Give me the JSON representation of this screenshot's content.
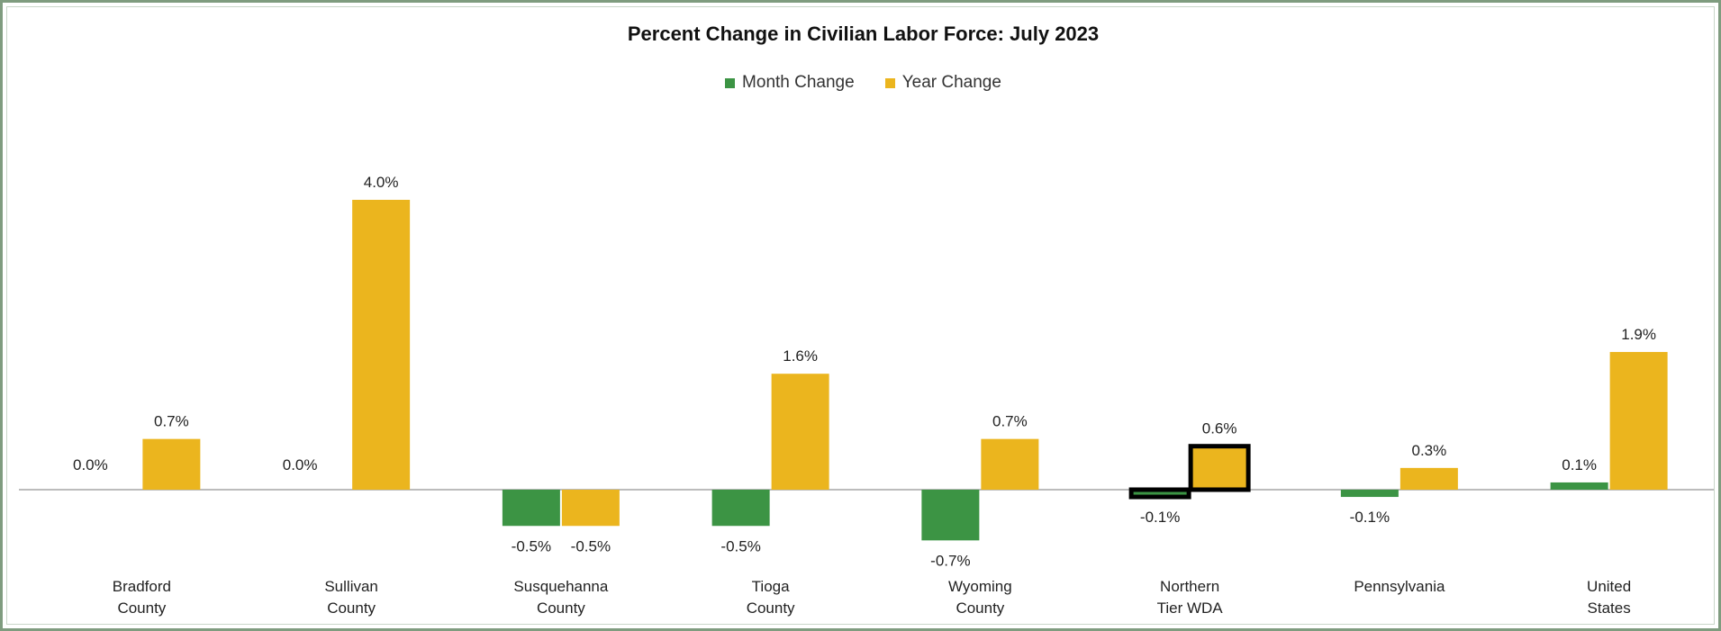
{
  "chart_data": {
    "type": "bar",
    "title": "Percent Change in Civilian Labor Force: July 2023",
    "categories": [
      [
        "Bradford",
        "County"
      ],
      [
        "Sullivan",
        "County"
      ],
      [
        "Susquehanna",
        "County"
      ],
      [
        "Tioga",
        "County"
      ],
      [
        "Wyoming",
        "County"
      ],
      [
        "Northern",
        "Tier WDA"
      ],
      [
        "Pennsylvania"
      ],
      [
        "United",
        "States"
      ]
    ],
    "series": [
      {
        "name": "Month Change",
        "color": "#3c9444",
        "values": [
          0.0,
          0.0,
          -0.5,
          -0.5,
          -0.7,
          -0.1,
          -0.1,
          0.1
        ],
        "labels": [
          "0.0%",
          "0.0%",
          "-0.5%",
          "-0.5%",
          "-0.7%",
          "-0.1%",
          "-0.1%",
          "0.1%"
        ]
      },
      {
        "name": "Year Change",
        "color": "#ebb51e",
        "values": [
          0.7,
          4.0,
          -0.5,
          1.6,
          0.7,
          0.6,
          0.3,
          1.9
        ],
        "labels": [
          "0.7%",
          "4.0%",
          "-0.5%",
          "1.6%",
          "0.7%",
          "0.6%",
          "0.3%",
          "1.9%"
        ]
      }
    ],
    "highlighted_category": "Northern Tier WDA",
    "ylim": [
      -1.0,
      4.0
    ],
    "grid": false,
    "legend_position": "top-center"
  }
}
